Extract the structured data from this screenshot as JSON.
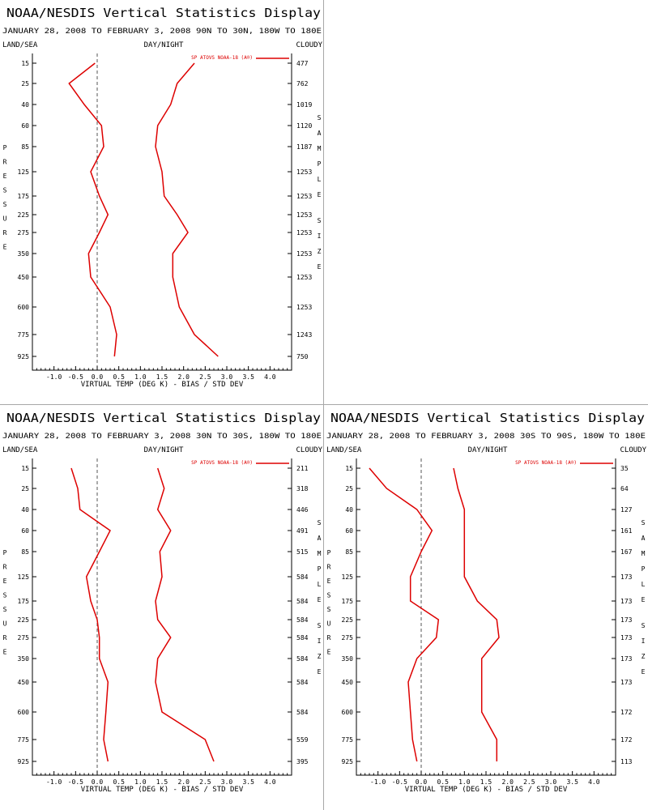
{
  "chart_data": [
    {
      "type": "line",
      "title": "NOAA/NESDIS Vertical Statistics Display",
      "subtitle": "JANUARY 28, 2008 TO FEBRUARY 3, 2008 90N TO 30N, 180W TO 180E",
      "header_left": "LAND/SEA",
      "header_center": "DAY/NIGHT",
      "header_right": "CLOUDY",
      "ylabel": "PRESSURE",
      "y2label": "SAMPLE SIZE",
      "xlabel": "VIRTUAL TEMP (DEG K) - BIAS / STD DEV",
      "xlim": [
        -1.5,
        4.5
      ],
      "xticks": [
        "-1.0",
        "-0.5",
        "0.0",
        "0.5",
        "1.0",
        "1.5",
        "2.0",
        "2.5",
        "3.0",
        "3.5",
        "4.0"
      ],
      "pressure_levels": [
        "15",
        "25",
        "40",
        "60",
        "85",
        "125",
        "175",
        "225",
        "275",
        "350",
        "450",
        "600",
        "775",
        "925"
      ],
      "sample_sizes": [
        "477",
        "762",
        "1019",
        "1120",
        "1187",
        "1253",
        "1253",
        "1253",
        "1253",
        "1253",
        "1253",
        "1253",
        "1243",
        "750"
      ],
      "legend": "SP ATOVS NOAA-18 (A®)",
      "series": [
        {
          "role": "bias",
          "values": [
            -0.05,
            -0.65,
            -0.3,
            0.1,
            0.15,
            -0.15,
            0.05,
            0.25,
            0.05,
            -0.2,
            -0.15,
            0.3,
            0.45,
            0.4
          ]
        },
        {
          "role": "std_dev",
          "values": [
            2.25,
            1.85,
            1.7,
            1.4,
            1.35,
            1.5,
            1.55,
            1.85,
            2.1,
            1.75,
            1.75,
            1.9,
            2.25,
            2.8
          ]
        }
      ]
    },
    {
      "type": "line",
      "title": "NOAA/NESDIS Vertical Statistics Display",
      "subtitle": "JANUARY 28, 2008 TO FEBRUARY 3, 2008 30N TO 30S, 180W TO 180E",
      "header_left": "LAND/SEA",
      "header_center": "DAY/NIGHT",
      "header_right": "CLOUDY",
      "ylabel": "PRESSURE",
      "y2label": "SAMPLE SIZE",
      "xlabel": "VIRTUAL TEMP (DEG K) - BIAS / STD DEV",
      "xlim": [
        -1.5,
        4.5
      ],
      "xticks": [
        "-1.0",
        "-0.5",
        "0.0",
        "0.5",
        "1.0",
        "1.5",
        "2.0",
        "2.5",
        "3.0",
        "3.5",
        "4.0"
      ],
      "pressure_levels": [
        "15",
        "25",
        "40",
        "60",
        "85",
        "125",
        "175",
        "225",
        "275",
        "350",
        "450",
        "600",
        "775",
        "925"
      ],
      "sample_sizes": [
        "211",
        "318",
        "446",
        "491",
        "515",
        "584",
        "584",
        "584",
        "584",
        "584",
        "584",
        "584",
        "559",
        "395"
      ],
      "legend": "SP ATOVS NOAA-18 (A®)",
      "series": [
        {
          "role": "bias",
          "values": [
            -0.6,
            -0.45,
            -0.4,
            0.3,
            0.05,
            -0.25,
            -0.15,
            0.0,
            0.05,
            0.05,
            0.25,
            0.2,
            0.15,
            0.25
          ]
        },
        {
          "role": "std_dev",
          "values": [
            1.4,
            1.55,
            1.4,
            1.7,
            1.45,
            1.5,
            1.35,
            1.4,
            1.7,
            1.4,
            1.35,
            1.5,
            2.5,
            2.7
          ]
        }
      ]
    },
    {
      "type": "line",
      "title": "NOAA/NESDIS Vertical Statistics Display",
      "subtitle": "JANUARY 28, 2008 TO FEBRUARY 3, 2008 30S TO 90S, 180W TO 180E",
      "header_left": "LAND/SEA",
      "header_center": "DAY/NIGHT",
      "header_right": "CLOUDY",
      "ylabel": "PRESSURE",
      "y2label": "SAMPLE SIZE",
      "xlabel": "VIRTUAL TEMP (DEG K) - BIAS / STD DEV",
      "xlim": [
        -1.5,
        4.5
      ],
      "xticks": [
        "-1.0",
        "-0.5",
        "0.0",
        "0.5",
        "1.0",
        "1.5",
        "2.0",
        "2.5",
        "3.0",
        "3.5",
        "4.0"
      ],
      "pressure_levels": [
        "15",
        "25",
        "40",
        "60",
        "85",
        "125",
        "175",
        "225",
        "275",
        "350",
        "450",
        "600",
        "775",
        "925"
      ],
      "sample_sizes": [
        "35",
        "64",
        "127",
        "161",
        "167",
        "173",
        "173",
        "173",
        "173",
        "173",
        "173",
        "172",
        "172",
        "113"
      ],
      "legend": "SP ATOVS NOAA-18 (A®)",
      "series": [
        {
          "role": "bias",
          "values": [
            -1.2,
            -0.8,
            -0.1,
            0.25,
            0.0,
            -0.25,
            -0.25,
            0.4,
            0.35,
            -0.1,
            -0.3,
            -0.25,
            -0.2,
            -0.1
          ]
        },
        {
          "role": "std_dev",
          "values": [
            0.75,
            0.85,
            1.0,
            1.0,
            1.0,
            1.0,
            1.3,
            1.75,
            1.8,
            1.4,
            1.4,
            1.4,
            1.75,
            1.75
          ]
        }
      ]
    }
  ],
  "colors": {
    "series": "#dd0000",
    "axes": "#000000",
    "zero_line": "#555555",
    "divider": "#a8a8a8"
  }
}
